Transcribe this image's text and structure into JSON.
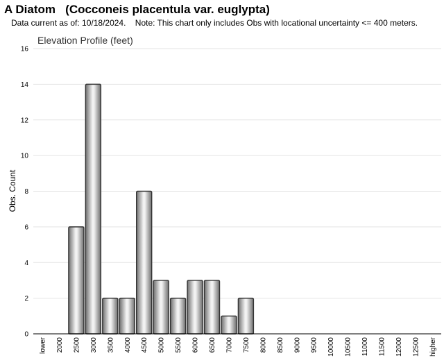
{
  "header": {
    "title": "A Diatom   (Cocconeis placentula var. euglypta)",
    "subtitle": "Data current as of: 10/18/2024.    Note: This chart only includes Obs with locational uncertainty <= 400 meters."
  },
  "chart_data": {
    "type": "bar",
    "title": "Elevation Profile (feet)",
    "xlabel": "",
    "ylabel": "Obs. Count",
    "ylim": [
      0,
      16
    ],
    "yticks": [
      0,
      2,
      4,
      6,
      8,
      10,
      12,
      14,
      16
    ],
    "grid": true,
    "categories": [
      "lower",
      "2000",
      "2500",
      "3000",
      "3500",
      "4000",
      "4500",
      "5000",
      "5500",
      "6000",
      "6500",
      "7000",
      "7500",
      "8000",
      "8500",
      "9000",
      "9500",
      "10000",
      "10500",
      "11000",
      "11500",
      "12000",
      "12500",
      "higher"
    ],
    "values": [
      0,
      0,
      6,
      14,
      2,
      2,
      8,
      3,
      2,
      3,
      3,
      1,
      2,
      0,
      0,
      0,
      0,
      0,
      0,
      0,
      0,
      0,
      0,
      0
    ]
  }
}
